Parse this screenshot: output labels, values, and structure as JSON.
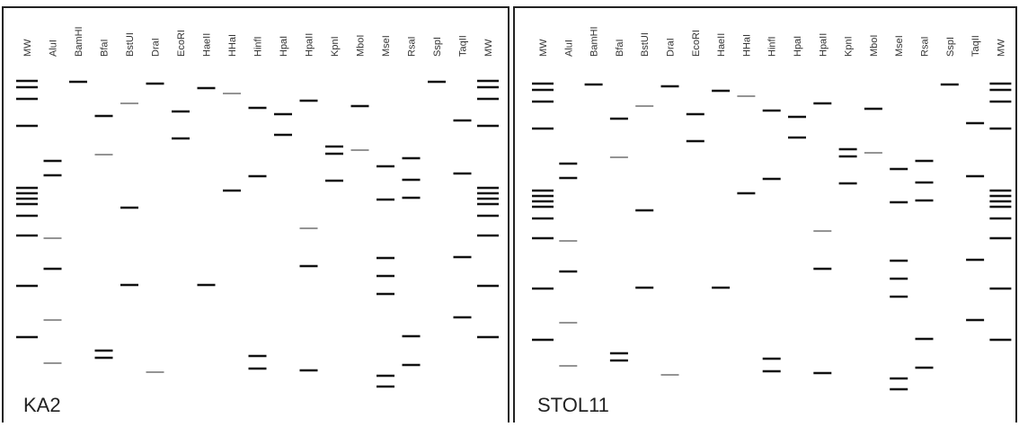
{
  "panels": [
    {
      "label": "KA2",
      "lanes": [
        "MW",
        "AluI",
        "BamHI",
        "BfaI",
        "BstUI",
        "DraI",
        "EcoRI",
        "HaeII",
        "HHaI",
        "HinfI",
        "HpaI",
        "HpaII",
        "KpnI",
        "MboI",
        "MseI",
        "RsaI",
        "SspI",
        "TaqII",
        "MW"
      ]
    },
    {
      "label": "STOL11",
      "lanes": [
        "MW",
        "AluI",
        "BamHI",
        "BfaI",
        "BstUI",
        "DraI",
        "EcoRI",
        "HaeII",
        "HHaI",
        "HinfI",
        "HpaI",
        "HpaII",
        "KpnI",
        "MboI",
        "MseI",
        "RsaI",
        "SspI",
        "TaqII",
        "MW"
      ]
    }
  ]
}
